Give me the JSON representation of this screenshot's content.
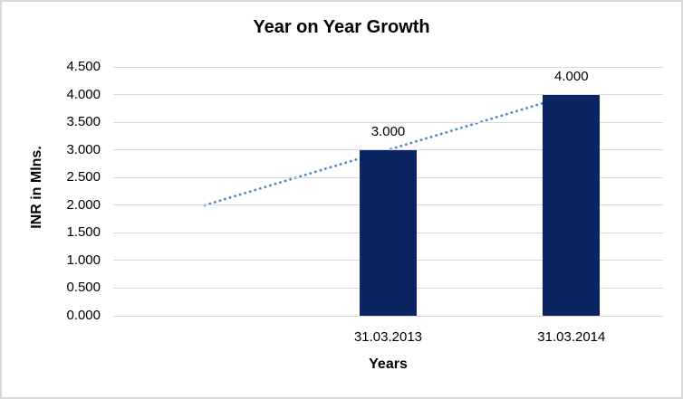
{
  "chart_data": {
    "type": "bar",
    "title": "Year on Year Growth",
    "xlabel": "Years",
    "ylabel": "INR in Mlns.",
    "categories": [
      "31.03.2013",
      "31.03.2014"
    ],
    "values": [
      3.0,
      4.0
    ],
    "bar_labels": [
      "3.000",
      "4.000"
    ],
    "bar_color": "#0B2563",
    "ylim": [
      0.0,
      4.5
    ],
    "ytick_step": 0.5,
    "ytick_labels": [
      "0.000",
      "0.500",
      "1.000",
      "1.500",
      "2.000",
      "2.500",
      "3.000",
      "3.500",
      "4.000",
      "4.500"
    ],
    "grid": true,
    "gridline_color": "#D9D9D9",
    "legend_position": "none",
    "trendline": {
      "style": "dotted",
      "color": "#4E86CB",
      "values": [
        2.0,
        3.0,
        4.0
      ],
      "start_value": 2.0,
      "end_value": 4.0
    }
  }
}
